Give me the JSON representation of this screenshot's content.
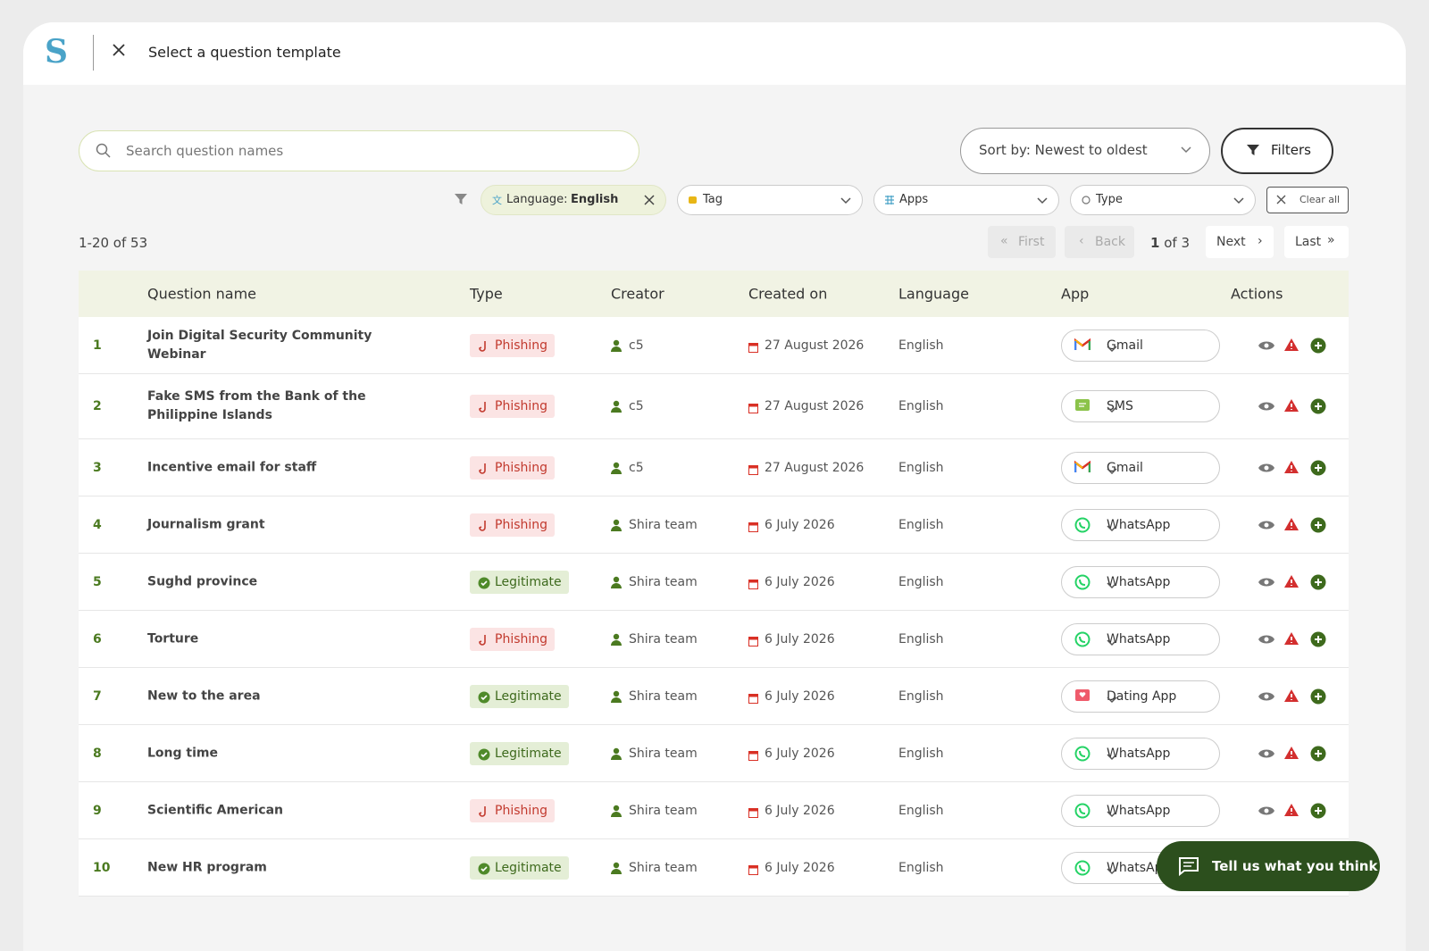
{
  "header": {
    "logo": "S",
    "title": "Select a question template"
  },
  "search": {
    "placeholder": "Search question names"
  },
  "sort": {
    "label": "Sort by: Newest to oldest"
  },
  "filters_button": "Filters",
  "chips": {
    "language_key": "Language:",
    "language_value": "English",
    "tag": "Tag",
    "apps": "Apps",
    "type": "Type",
    "clear": "Clear all"
  },
  "pagination": {
    "range": "1-20 of 53",
    "first": "First",
    "back": "Back",
    "page": "1",
    "of": "of 3",
    "next": "Next",
    "last": "Last"
  },
  "table": {
    "columns": [
      "Question name",
      "Type",
      "Creator",
      "Created on",
      "Language",
      "App",
      "Actions"
    ],
    "rows": [
      [
        "1",
        "Join Digital Security Community Webinar",
        "Phishing",
        "c5",
        "27 August 2026",
        "English",
        "Gmail"
      ],
      [
        "2",
        "Fake SMS from the Bank of the Philippine Islands",
        "Phishing",
        "c5",
        "27 August 2026",
        "English",
        "SMS"
      ],
      [
        "3",
        "Incentive email for staff",
        "Phishing",
        "c5",
        "27 August 2026",
        "English",
        "Gmail"
      ],
      [
        "4",
        "Journalism grant",
        "Phishing",
        "Shira team",
        "6 July 2026",
        "English",
        "WhatsApp"
      ],
      [
        "5",
        "Sughd province",
        "Legitimate",
        "Shira team",
        "6 July 2026",
        "English",
        "WhatsApp"
      ],
      [
        "6",
        "Torture",
        "Phishing",
        "Shira team",
        "6 July 2026",
        "English",
        "WhatsApp"
      ],
      [
        "7",
        "New to the area",
        "Legitimate",
        "Shira team",
        "6 July 2026",
        "English",
        "Dating App"
      ],
      [
        "8",
        "Long time",
        "Legitimate",
        "Shira team",
        "6 July 2026",
        "English",
        "WhatsApp"
      ],
      [
        "9",
        "Scientific American",
        "Phishing",
        "Shira team",
        "6 July 2026",
        "English",
        "WhatsApp"
      ],
      [
        "10",
        "New HR program",
        "Legitimate",
        "Shira team",
        "6 July 2026",
        "English",
        "WhatsApp"
      ]
    ]
  },
  "feedback": "Tell us what you think"
}
